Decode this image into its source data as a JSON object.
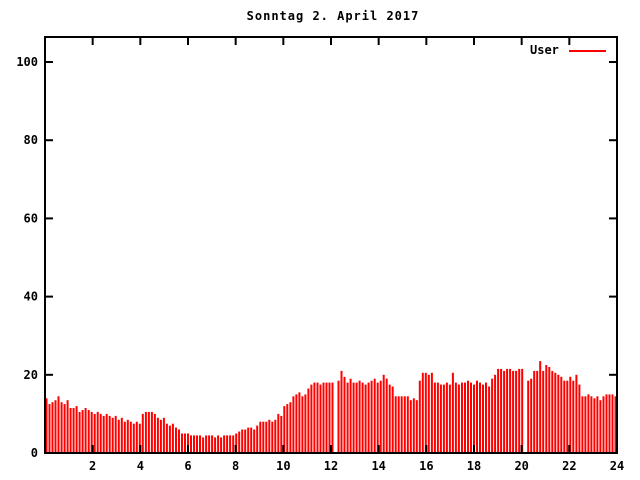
{
  "chart_data": {
    "type": "bar",
    "title": "Sonntag 2. April 2017",
    "legend": {
      "label": "User",
      "position": "top-right-inside"
    },
    "series_color": "#ff0000",
    "background_color": "#ffffff",
    "border_color": "#000000",
    "grid": false,
    "xlabel": "",
    "ylabel": "",
    "xlim": [
      0,
      24
    ],
    "ylim": [
      0,
      106.4
    ],
    "x_ticks": [
      2,
      4,
      6,
      8,
      10,
      12,
      14,
      16,
      18,
      20,
      22,
      24
    ],
    "y_ticks": [
      0,
      20,
      40,
      60,
      80,
      100
    ],
    "values_note": "User count sampled across 24h; null = missing sample (visible gaps near 12:00 and 20:10)",
    "values": [
      14,
      12.5,
      13,
      13.5,
      14.5,
      13,
      12.5,
      13.5,
      11.5,
      11.5,
      12,
      10.5,
      11,
      11.5,
      11,
      10.5,
      10,
      10.5,
      10,
      9.5,
      10,
      9.5,
      9,
      9.5,
      8.5,
      9,
      8,
      8.5,
      8,
      7.5,
      8,
      7.5,
      10,
      10.5,
      10.5,
      10.5,
      10,
      9,
      8.5,
      9,
      7.5,
      7,
      7.5,
      6.5,
      6,
      5,
      5,
      5,
      4.5,
      4.5,
      4.5,
      4.5,
      4,
      4.5,
      4.5,
      4.5,
      4,
      4.5,
      4,
      4.5,
      4.5,
      4.5,
      4.5,
      5,
      5.5,
      6,
      6,
      6.5,
      6.5,
      6,
      7,
      8,
      8,
      8,
      8.5,
      8,
      8.5,
      10,
      9.5,
      12,
      12.5,
      13,
      14.5,
      15,
      15.5,
      14.5,
      15,
      16.5,
      17.5,
      18,
      18,
      17.5,
      18,
      18,
      18,
      18,
      null,
      18.5,
      21,
      19.5,
      18,
      19,
      18,
      18,
      18.5,
      18,
      17.5,
      18,
      18.5,
      19,
      18,
      18.5,
      20,
      19,
      17.5,
      17,
      14.5,
      14.5,
      14.5,
      14.5,
      14.5,
      13.5,
      14,
      13.5,
      18.5,
      20.5,
      20.5,
      20,
      20.5,
      18,
      18,
      17.5,
      17.5,
      18,
      17.5,
      20.5,
      18,
      17.5,
      18,
      18,
      18.5,
      18,
      17.5,
      18.5,
      18,
      17.5,
      18,
      17,
      19,
      20,
      21.5,
      21.5,
      21,
      21.5,
      21.5,
      21,
      21,
      21.5,
      21.5,
      null,
      18.5,
      19,
      21,
      21,
      23.5,
      21,
      22.5,
      22,
      21,
      20.5,
      20,
      19.5,
      18.5,
      18.5,
      19.5,
      18.5,
      20,
      17.5,
      14.5,
      14.5,
      15,
      14.5,
      14,
      14.5,
      13.5,
      14.5,
      15,
      15,
      15,
      14.5
    ]
  }
}
